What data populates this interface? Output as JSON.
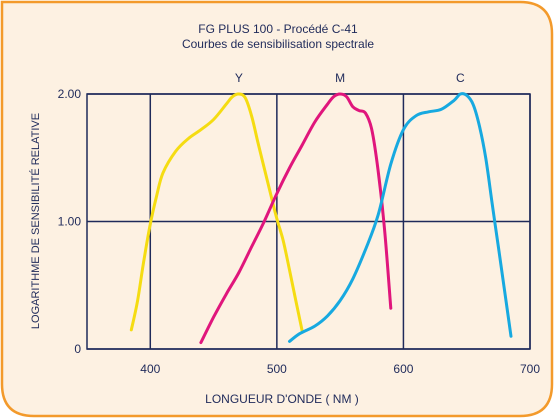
{
  "colors": {
    "frame_fill": "#fdf1e2",
    "frame_border": "#f39a2b",
    "grid": "#1f2a5a",
    "text": "#1f2a5a"
  },
  "chart_data": {
    "type": "line",
    "title": "FG PLUS 100 - Procédé C-41",
    "subtitle": "Courbes de sensibilisation spectrale",
    "xlabel": "LONGUEUR D'ONDE  ( NM )",
    "ylabel": "LOGARITHME  DE  SENSIBILITÉ RELATIVE",
    "xlim": [
      350,
      700
    ],
    "ylim": [
      0,
      2.0
    ],
    "x_ticks": [
      {
        "value": 400,
        "label": "400"
      },
      {
        "value": 500,
        "label": "500"
      },
      {
        "value": 600,
        "label": "600"
      },
      {
        "value": 700,
        "label": "700"
      }
    ],
    "y_ticks": [
      {
        "value": 0,
        "label": "0"
      },
      {
        "value": 1.0,
        "label": "1.00"
      },
      {
        "value": 2.0,
        "label": "2.00"
      }
    ],
    "grid": true,
    "series": [
      {
        "name": "Y",
        "color": "#f5dc12",
        "points": [
          [
            385,
            0.15
          ],
          [
            390,
            0.38
          ],
          [
            395,
            0.7
          ],
          [
            400,
            0.98
          ],
          [
            405,
            1.2
          ],
          [
            410,
            1.38
          ],
          [
            420,
            1.55
          ],
          [
            430,
            1.65
          ],
          [
            440,
            1.72
          ],
          [
            450,
            1.8
          ],
          [
            460,
            1.92
          ],
          [
            465,
            1.98
          ],
          [
            470,
            2.0
          ],
          [
            475,
            1.97
          ],
          [
            480,
            1.83
          ],
          [
            485,
            1.62
          ],
          [
            490,
            1.42
          ],
          [
            495,
            1.22
          ],
          [
            500,
            1.02
          ],
          [
            505,
            0.85
          ],
          [
            510,
            0.62
          ],
          [
            515,
            0.38
          ],
          [
            520,
            0.14
          ]
        ]
      },
      {
        "name": "M",
        "color": "#e0167c",
        "points": [
          [
            440,
            0.05
          ],
          [
            450,
            0.25
          ],
          [
            460,
            0.43
          ],
          [
            470,
            0.6
          ],
          [
            480,
            0.8
          ],
          [
            490,
            1.0
          ],
          [
            500,
            1.22
          ],
          [
            510,
            1.42
          ],
          [
            520,
            1.6
          ],
          [
            530,
            1.78
          ],
          [
            540,
            1.92
          ],
          [
            545,
            1.98
          ],
          [
            550,
            2.0
          ],
          [
            555,
            1.98
          ],
          [
            560,
            1.9
          ],
          [
            565,
            1.87
          ],
          [
            570,
            1.85
          ],
          [
            575,
            1.72
          ],
          [
            580,
            1.4
          ],
          [
            585,
            0.95
          ],
          [
            590,
            0.32
          ]
        ]
      },
      {
        "name": "C",
        "color": "#17a9e0",
        "points": [
          [
            510,
            0.06
          ],
          [
            518,
            0.12
          ],
          [
            530,
            0.18
          ],
          [
            540,
            0.26
          ],
          [
            550,
            0.38
          ],
          [
            560,
            0.55
          ],
          [
            570,
            0.78
          ],
          [
            580,
            1.05
          ],
          [
            590,
            1.45
          ],
          [
            600,
            1.72
          ],
          [
            610,
            1.83
          ],
          [
            620,
            1.86
          ],
          [
            630,
            1.88
          ],
          [
            640,
            1.95
          ],
          [
            645,
            2.0
          ],
          [
            650,
            1.99
          ],
          [
            655,
            1.92
          ],
          [
            660,
            1.75
          ],
          [
            665,
            1.5
          ],
          [
            670,
            1.15
          ],
          [
            675,
            0.8
          ],
          [
            680,
            0.45
          ],
          [
            685,
            0.1
          ]
        ]
      }
    ]
  }
}
